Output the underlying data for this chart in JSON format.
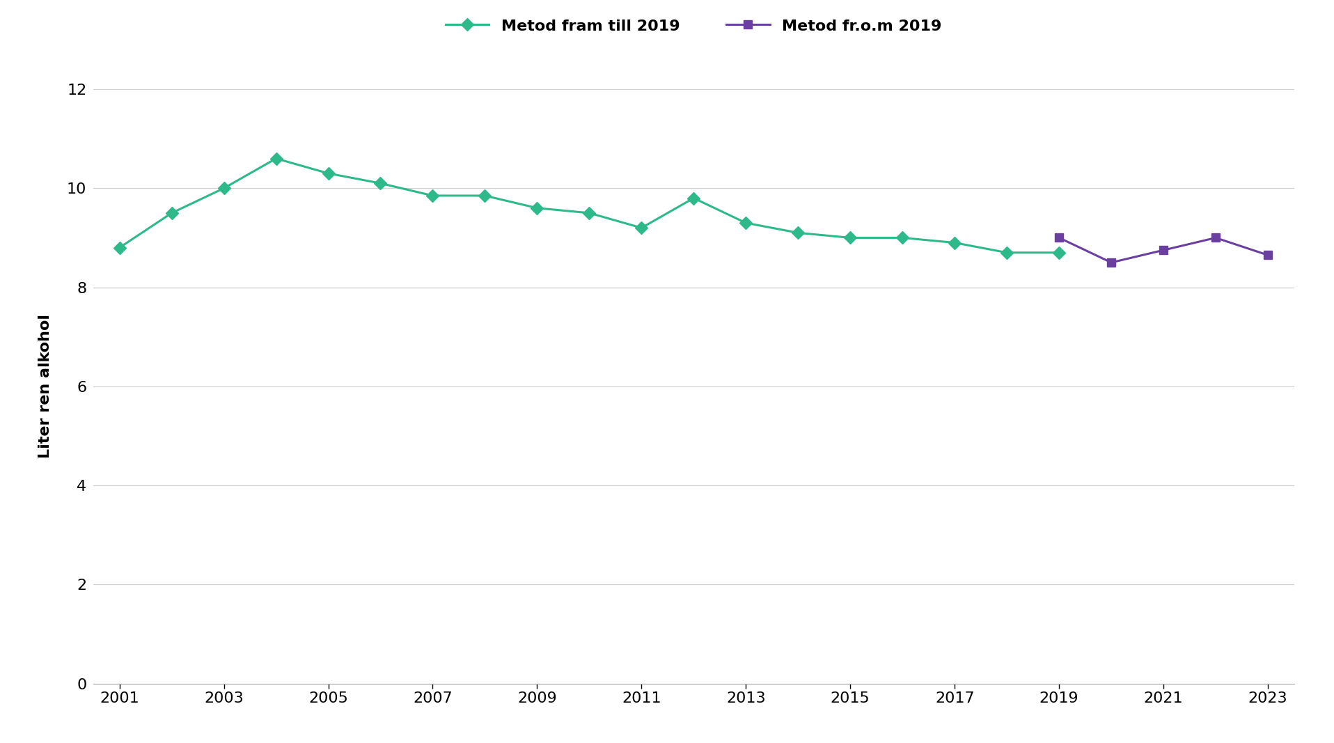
{
  "series1_label": "Metod fram till 2019",
  "series1_color": "#2DB98A",
  "series1_x": [
    2001,
    2002,
    2003,
    2004,
    2005,
    2006,
    2007,
    2008,
    2009,
    2010,
    2011,
    2012,
    2013,
    2014,
    2015,
    2016,
    2017,
    2018,
    2019
  ],
  "series1_y": [
    8.8,
    9.5,
    10.0,
    10.6,
    10.3,
    10.1,
    9.85,
    9.85,
    9.6,
    9.5,
    9.2,
    9.8,
    9.3,
    9.1,
    9.0,
    9.0,
    8.9,
    8.7,
    8.7
  ],
  "series2_label": "Metod fr.o.m 2019",
  "series2_color": "#6B3FA0",
  "series2_x": [
    2019,
    2020,
    2021,
    2022,
    2023
  ],
  "series2_y": [
    9.0,
    8.5,
    8.75,
    9.0,
    8.65
  ],
  "ylabel": "Liter ren alkohol",
  "ylim": [
    0,
    12
  ],
  "yticks": [
    0,
    2,
    4,
    6,
    8,
    10,
    12
  ],
  "xlim": [
    2000.5,
    2023.5
  ],
  "xticks": [
    2001,
    2003,
    2005,
    2007,
    2009,
    2011,
    2013,
    2015,
    2017,
    2019,
    2021,
    2023
  ],
  "background_color": "#ffffff",
  "grid_color": "#d0d0d0",
  "axis_fontsize": 16,
  "tick_fontsize": 16,
  "legend_fontsize": 16,
  "linewidth": 2.2,
  "markersize": 9
}
